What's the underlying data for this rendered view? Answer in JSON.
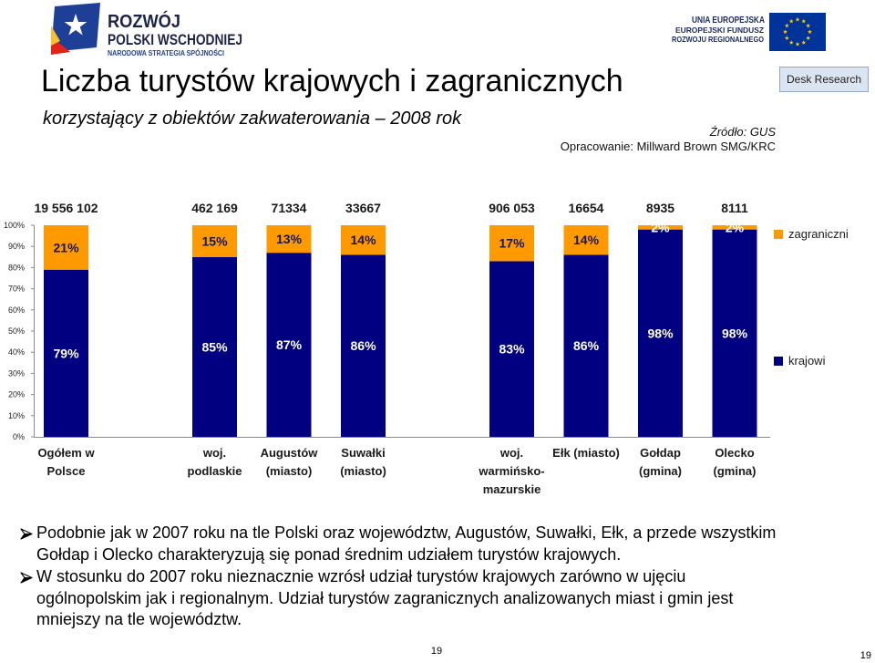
{
  "header": {
    "logo_left": {
      "line1": "ROZWÓJ",
      "line2": "POLSKI WSCHODNIEJ",
      "line3": "NARODOWA STRATEGIA SPÓJNOŚCI"
    },
    "logo_right": {
      "line1": "UNIA EUROPEJSKA",
      "line2": "EUROPEJSKI FUNDUSZ",
      "line3": "ROZWOJU REGIONALNEGO"
    },
    "badge": "Desk Research"
  },
  "title": "Liczba turystów krajowych i zagranicznych",
  "subtitle": "korzystający z obiektów zakwaterowania – 2008 rok",
  "source": {
    "line1": "Źródło: GUS",
    "line2": "Opracowanie: Millward Brown SMG/KRC"
  },
  "chart_data": {
    "type": "bar",
    "stacking": "percent",
    "categories": [
      "Ogółem w\nPolsce",
      "woj.\npodlaskie",
      "Augustów\n(miasto)",
      "Suwałki\n(miasto)",
      "woj.\nwarmińsko-\nmazurskie",
      "Ełk (miasto)",
      "Gołdap\n(gmina)",
      "Olecko\n(gmina)"
    ],
    "totals": [
      "19 556 102",
      "462 169",
      "71334",
      "33667",
      "906 053",
      "16654",
      "8935",
      "8111"
    ],
    "series": [
      {
        "name": "krajowi",
        "values": [
          79,
          85,
          87,
          86,
          83,
          86,
          98,
          98
        ],
        "color": "#000080"
      },
      {
        "name": "zagraniczni",
        "values": [
          21,
          15,
          13,
          14,
          17,
          14,
          2,
          2
        ],
        "color": "#ff9900"
      }
    ],
    "unit": "%",
    "ylim": [
      0,
      100
    ],
    "y_tick_labels": [
      "0%",
      "10%",
      "20%",
      "30%",
      "40%",
      "50%",
      "60%",
      "70%",
      "80%",
      "90%",
      "100%"
    ],
    "grid": false,
    "legend_position": "right"
  },
  "bullets": [
    "Podobnie jak w 2007 roku na tle Polski oraz województw, Augustów, Suwałki, Ełk, a przede wszystkim Gołdap i Olecko charakteryzują się ponad średnim udziałem turystów krajowych.",
    "W stosunku do 2007 roku nieznacznie wzrósł udział turystów krajowych zarówno w ujęciu ogólnopolskim jak i regionalnym. Udział turystów zagranicznych analizowanych miast i gmin jest mniejszy na tle województw."
  ],
  "icons": {
    "bullet": "arrow-bullet-icon",
    "logo_left": "rozwoj-polski-wschodniej-logo-icon",
    "logo_right": "eu-flag-icon"
  },
  "colors": {
    "krajowi": "#000080",
    "zagraniczni": "#ff9900",
    "eu_blue": "#003399",
    "badge_background": "#dbe5f1"
  },
  "footer": {
    "page_number": "19",
    "corner_number": "19"
  }
}
